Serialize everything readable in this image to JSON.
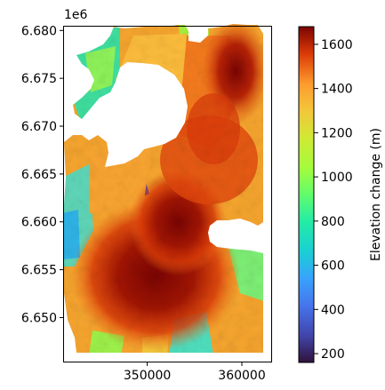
{
  "chart_data": {
    "type": "heatmap",
    "title": "",
    "xlabel": "",
    "ylabel": "",
    "y_offset_label": "1e6",
    "xlim": [
      341200,
      363100
    ],
    "ylim": [
      6645400,
      6680400
    ],
    "xticks": [
      {
        "value": 350000,
        "label": "350000"
      },
      {
        "value": 360000,
        "label": "360000"
      }
    ],
    "yticks": [
      {
        "value": 6650000,
        "label": "6.650"
      },
      {
        "value": 6655000,
        "label": "6.655"
      },
      {
        "value": 6660000,
        "label": "6.660"
      },
      {
        "value": 6665000,
        "label": "6.665"
      },
      {
        "value": 6670000,
        "label": "6.670"
      },
      {
        "value": 6675000,
        "label": "6.675"
      },
      {
        "value": 6680000,
        "label": "6.680"
      }
    ],
    "colorbar": {
      "label": "Elevation change (m)",
      "colormap": "turbo",
      "range": [
        160,
        1680
      ],
      "ticks": [
        200,
        400,
        600,
        800,
        1000,
        1200,
        1400,
        1600
      ],
      "tick_labels": [
        "200",
        "400",
        "600",
        "800",
        "1000",
        "1200",
        "1400",
        "1600"
      ]
    },
    "grid": false
  }
}
